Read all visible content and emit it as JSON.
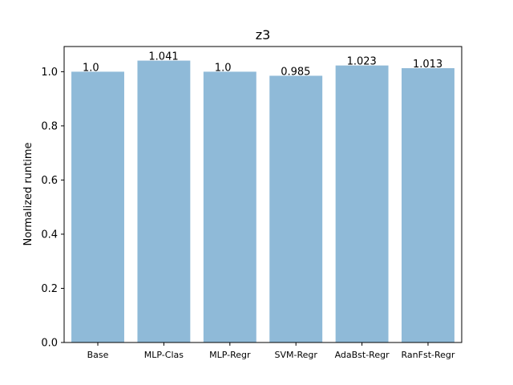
{
  "chart_data": {
    "type": "bar",
    "title": "z3",
    "xlabel": "",
    "ylabel": "Normalized runtime",
    "categories": [
      "Base",
      "MLP-Clas",
      "MLP-Regr",
      "SVM-Regr",
      "AdaBst-Regr",
      "RanFst-Regr"
    ],
    "values": [
      1.0,
      1.041,
      1.0,
      0.985,
      1.023,
      1.013
    ],
    "data_labels": [
      "1.0",
      "1.041",
      "1.0",
      "0.985",
      "1.023",
      "1.013"
    ],
    "ylim": [
      0,
      1.093
    ],
    "yticks": [
      0.0,
      0.2,
      0.4,
      0.6,
      0.8,
      1.0
    ],
    "ytick_labels": [
      "0.0",
      "0.2",
      "0.4",
      "0.6",
      "0.8",
      "1.0"
    ],
    "bar_color": "#8fbad8",
    "grid": false,
    "legend": "none"
  }
}
